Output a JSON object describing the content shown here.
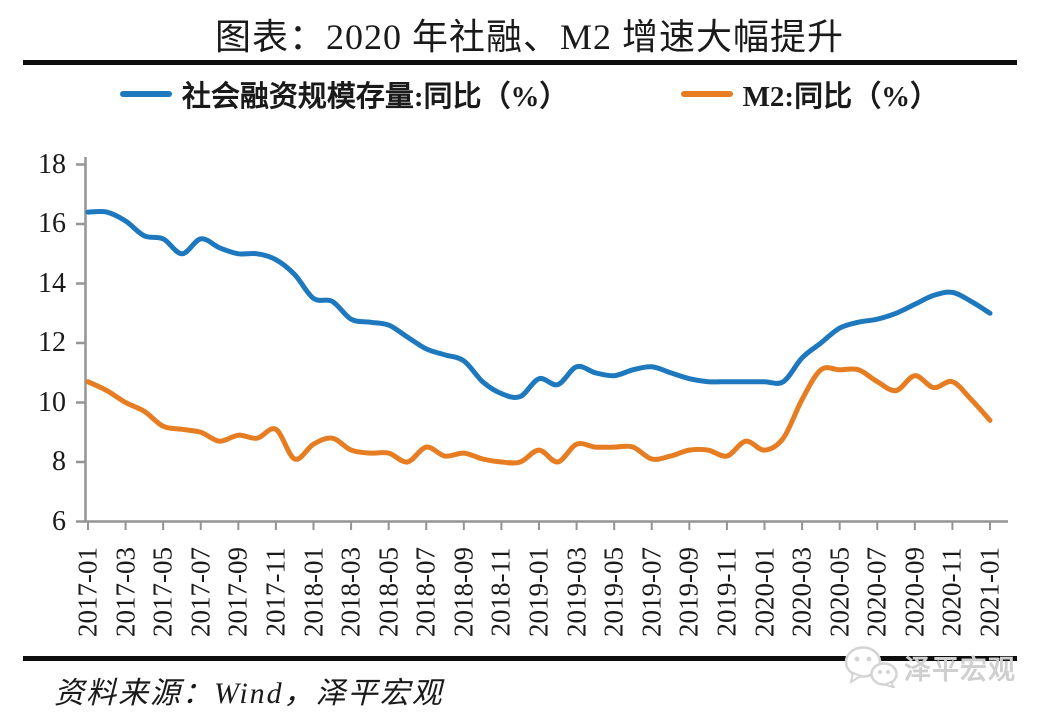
{
  "title": "图表：2020 年社融、M2 增速大幅提升",
  "legend": [
    {
      "label": "社会融资规模存量:同比（%）"
    },
    {
      "label": "M2:同比（%）"
    }
  ],
  "source": "资料来源：Wind，泽平宏观",
  "watermark": "泽平宏观",
  "colors": {
    "series1": "#1E78BE",
    "series2": "#E67D22",
    "axis": "#949494",
    "rule": "#0d0d0d",
    "watermark": "#cfcfcf"
  },
  "chart_data": {
    "type": "line",
    "title": "图表：2020 年社融、M2 增速大幅提升",
    "xlabel": "",
    "ylabel": "",
    "ylim": [
      6,
      18
    ],
    "yticks": [
      18,
      16,
      14,
      12,
      10,
      8,
      6
    ],
    "grid": false,
    "legend_position": "top",
    "x": [
      "2017-01",
      "2017-02",
      "2017-03",
      "2017-04",
      "2017-05",
      "2017-06",
      "2017-07",
      "2017-08",
      "2017-09",
      "2017-10",
      "2017-11",
      "2017-12",
      "2018-01",
      "2018-02",
      "2018-03",
      "2018-04",
      "2018-05",
      "2018-06",
      "2018-07",
      "2018-08",
      "2018-09",
      "2018-10",
      "2018-11",
      "2018-12",
      "2019-01",
      "2019-02",
      "2019-03",
      "2019-04",
      "2019-05",
      "2019-06",
      "2019-07",
      "2019-08",
      "2019-09",
      "2019-10",
      "2019-11",
      "2019-12",
      "2020-01",
      "2020-02",
      "2020-03",
      "2020-04",
      "2020-05",
      "2020-06",
      "2020-07",
      "2020-08",
      "2020-09",
      "2020-10",
      "2020-11",
      "2020-12",
      "2021-01"
    ],
    "x_tick_labels": [
      "2017-01",
      "2017-03",
      "2017-05",
      "2017-07",
      "2017-09",
      "2017-11",
      "2018-01",
      "2018-03",
      "2018-05",
      "2018-07",
      "2018-09",
      "2018-11",
      "2019-01",
      "2019-03",
      "2019-05",
      "2019-07",
      "2019-09",
      "2019-11",
      "2020-01",
      "2020-03",
      "2020-05",
      "2020-07",
      "2020-09",
      "2020-11",
      "2021-01"
    ],
    "series": [
      {
        "name": "社会融资规模存量:同比（%）",
        "color": "#1E78BE",
        "values": [
          16.4,
          16.4,
          16.1,
          15.6,
          15.5,
          15.0,
          15.5,
          15.2,
          15.0,
          15.0,
          14.8,
          14.3,
          13.5,
          13.4,
          12.8,
          12.7,
          12.6,
          12.2,
          11.8,
          11.6,
          11.4,
          10.7,
          10.3,
          10.2,
          10.8,
          10.6,
          11.2,
          11.0,
          10.9,
          11.1,
          11.2,
          11.0,
          10.8,
          10.7,
          10.7,
          10.7,
          10.7,
          10.7,
          11.5,
          12.0,
          12.5,
          12.7,
          12.8,
          13.0,
          13.3,
          13.6,
          13.7,
          13.4,
          13.0
        ]
      },
      {
        "name": "M2:同比（%）",
        "color": "#E67D22",
        "values": [
          10.7,
          10.4,
          10.0,
          9.7,
          9.2,
          9.1,
          9.0,
          8.7,
          8.9,
          8.8,
          9.1,
          8.1,
          8.6,
          8.8,
          8.4,
          8.3,
          8.3,
          8.0,
          8.5,
          8.2,
          8.3,
          8.1,
          8.0,
          8.0,
          8.4,
          8.0,
          8.6,
          8.5,
          8.5,
          8.5,
          8.1,
          8.2,
          8.4,
          8.4,
          8.2,
          8.7,
          8.4,
          8.8,
          10.1,
          11.1,
          11.1,
          11.1,
          10.7,
          10.4,
          10.9,
          10.5,
          10.7,
          10.1,
          9.4
        ]
      }
    ]
  }
}
